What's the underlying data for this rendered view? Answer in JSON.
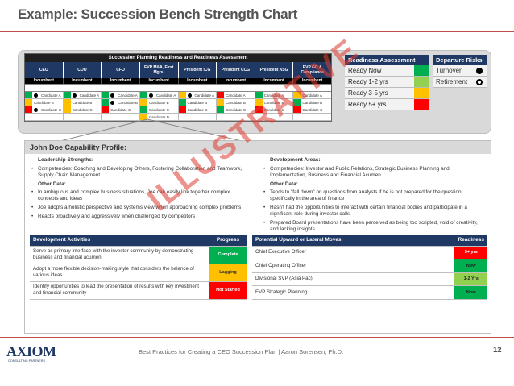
{
  "slide": {
    "title": "Example: Succession Bench Strength Chart",
    "footer": "Best Practices for Creating a CEO Succession Plan  |  Aaron Sorensen, Ph.D.",
    "page_number": "12",
    "watermark": "ILLUSTRATIVE",
    "logo_text": "AXIOM",
    "logo_sub": "CONSULTING PARTNERS"
  },
  "grid": {
    "title": "Succession Planning Readiness and Readiness Assessment",
    "positions": [
      "CEO",
      "COO",
      "CFO",
      "EVP M&A, First Mgrs.",
      "President ICG",
      "President CCG",
      "President ASG",
      "EVP GC & Compliance"
    ],
    "incumbent_label": "Incumbent",
    "rows": [
      [
        {
          "c": "#00b050",
          "d": "black",
          "t": "Candidate A"
        },
        {
          "c": "#00b050",
          "d": "black",
          "t": "Candidate A"
        },
        {
          "c": "#00b050",
          "d": "black",
          "t": "Candidate A"
        },
        {
          "c": "#00b050",
          "d": "black",
          "t": "Candidate A"
        },
        {
          "c": "#ffc000",
          "d": "black",
          "t": "Candidate A"
        },
        {
          "c": "#ff0000",
          "d": "",
          "t": "Candidate A"
        },
        {
          "c": "#00b050",
          "d": "",
          "t": "Candidate A"
        },
        {
          "c": "#ffc000",
          "d": "",
          "t": "Candidate A"
        }
      ],
      [
        {
          "c": "#ffc000",
          "d": "",
          "t": "Candidate B"
        },
        {
          "c": "#ffc000",
          "d": "",
          "t": "Candidate B"
        },
        {
          "c": "#00b050",
          "d": "black",
          "t": "Candidate B"
        },
        {
          "c": "#ffc000",
          "d": "",
          "t": "Candidate B"
        },
        {
          "c": "#00b050",
          "d": "",
          "t": "Candidate B"
        },
        {
          "c": "#ffc000",
          "d": "",
          "t": "Candidate B"
        },
        {
          "c": "#ffc000",
          "d": "",
          "t": "Candidate B"
        },
        {
          "c": "#00b050",
          "d": "",
          "t": "Candidate B"
        }
      ],
      [
        {
          "c": "#ff0000",
          "d": "black",
          "t": "Candidate C"
        },
        {
          "c": "#ffc000",
          "d": "",
          "t": "Candidate C"
        },
        {
          "c": "#ff0000",
          "d": "",
          "t": "Candidate C"
        },
        {
          "c": "#00b050",
          "d": "",
          "t": "Candidate C"
        },
        {
          "c": "#ff0000",
          "d": "",
          "t": "Candidate C"
        },
        {
          "c": "#00b050",
          "d": "",
          "t": "Candidate C"
        },
        {
          "c": "#ff0000",
          "d": "",
          "t": "Candidate C"
        },
        {
          "c": "#ff0000",
          "d": "",
          "t": "Candidate C"
        }
      ],
      [
        {
          "c": "",
          "d": "",
          "t": ""
        },
        {
          "c": "",
          "d": "",
          "t": ""
        },
        {
          "c": "",
          "d": "",
          "t": ""
        },
        {
          "c": "#ffc000",
          "d": "",
          "t": "Candidate D"
        },
        {
          "c": "",
          "d": "",
          "t": ""
        },
        {
          "c": "",
          "d": "",
          "t": ""
        },
        {
          "c": "",
          "d": "",
          "t": ""
        },
        {
          "c": "",
          "d": "",
          "t": ""
        }
      ]
    ]
  },
  "readiness_legend": {
    "title": "Readiness Assessment",
    "items": [
      {
        "label": "Ready Now",
        "color": "#00b050"
      },
      {
        "label": "Ready 1-2 yrs",
        "color": "#92d050"
      },
      {
        "label": "Ready 3-5 yrs",
        "color": "#ffc000"
      },
      {
        "label": "Ready 5+ yrs",
        "color": "#ff0000"
      }
    ]
  },
  "departure_legend": {
    "title": "Departure Risks",
    "items": [
      {
        "label": "Turnover",
        "marker": "black"
      },
      {
        "label": "Retirement",
        "marker": "ring"
      }
    ]
  },
  "profile": {
    "title": "John Doe Capability Profile:",
    "strengths": {
      "heading": "Leadership Strengths:",
      "competencies": "Competencies:  Coaching and Developing Others, Fostering Collaboration and Teamwork, Supply Chain Management",
      "other_heading": "Other Data:",
      "items": [
        "In ambiguous and complex business situations, Joe can easily link together complex concepts and ideas",
        "Joe adopts a holistic perspective and systems view when approaching complex problems",
        "Reacts proactively and aggressively when challenged by competitors"
      ]
    },
    "development": {
      "heading": "Development Areas:",
      "competencies": "Competencies: Investor and Public Relations, Strategic Business Planning and Implementation, Business and Financial Acumen",
      "other_heading": "Other Data:",
      "items": [
        "Tends to \"fall down\" on questions from analysts if he is not prepared for the question, specifically in the area of finance",
        "Hasn't had the opportunities to interact with certain financial bodies and participate in a significant role during investor calls",
        "Prepared Board presentations have been perceived as being too scripted, void of creativity, and lacking insights"
      ]
    }
  },
  "activities": {
    "col1": "Development Activities",
    "col2": "Progress",
    "rows": [
      {
        "text": "Serve as primary interface with the investor community by demonstrating business and financial acumen",
        "status": "Complete",
        "color": "green"
      },
      {
        "text": "Adopt a more flexible decision-making style that considers the balance of various ideas",
        "status": "Lagging",
        "color": "yellow"
      },
      {
        "text": "Identify opportunities to lead the presentation of results with key investment and financial community",
        "status": "Not Started",
        "color": "red"
      }
    ]
  },
  "moves": {
    "col1": "Potential Upward or Lateral Moves:",
    "col2": "Readiness",
    "rows": [
      {
        "text": "Chief Executive Officer",
        "status": "5+ yrs",
        "color": "red"
      },
      {
        "text": "Chief Operating Officer",
        "status": "Now",
        "color": "green"
      },
      {
        "text": "Divisional SVP (Asia Pac)",
        "status": "1-2 Yrs",
        "color": "lightgreen"
      },
      {
        "text": "EVP Strategic Planning",
        "status": "Now",
        "color": "green"
      }
    ]
  }
}
